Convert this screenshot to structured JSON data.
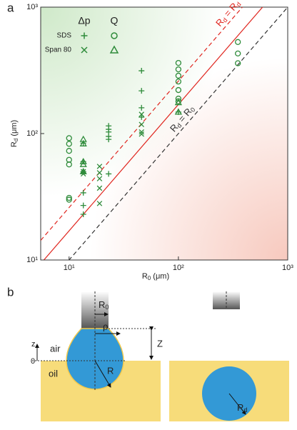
{
  "chart_data": {
    "type": "scatter",
    "panel_label": "a",
    "x_label": {
      "base": "R",
      "sub": "0",
      "unit": " (μm)"
    },
    "y_label": {
      "base": "R",
      "sub": "d",
      "unit": " (μm)"
    },
    "log_x": true,
    "log_y": true,
    "xlim": [
      5.5,
      1000
    ],
    "ylim": [
      10,
      1000
    ],
    "xticks": [
      {
        "value": 10,
        "label": "10¹"
      },
      {
        "value": 100,
        "label": "10²"
      },
      {
        "value": 1000,
        "label": "10³"
      }
    ],
    "yticks": [
      {
        "value": 10,
        "label": "10¹"
      },
      {
        "value": 100,
        "label": "10²"
      },
      {
        "value": 1000,
        "label": "10³"
      }
    ],
    "series": [
      {
        "name": "SDS",
        "method": "Δp",
        "marker": "plus",
        "color": "#2e8b3a",
        "x": [
          13.5,
          13.5,
          13.5,
          13.5,
          13.5,
          13.5,
          23,
          23,
          23,
          23,
          23,
          23,
          46,
          46,
          46,
          46,
          100
        ],
        "values": [
          84,
          60,
          50,
          34,
          27,
          23,
          115,
          108,
          103,
          95,
          90,
          48,
          314,
          218,
          160,
          135,
          148
        ]
      },
      {
        "name": "SDS",
        "method": "Q",
        "marker": "circle",
        "color": "#2e8b3a",
        "x": [
          10,
          10,
          10,
          10,
          10,
          10,
          10,
          100,
          100,
          100,
          100,
          100,
          100,
          100,
          350,
          350,
          350
        ],
        "values": [
          92,
          83,
          73,
          62,
          57,
          31,
          30,
          362,
          322,
          287,
          258,
          221,
          189,
          180,
          530,
          430,
          360
        ]
      },
      {
        "name": "Span 80",
        "method": "Δp",
        "marker": "cross",
        "color": "#2e8b3a",
        "x": [
          13.5,
          13.5,
          19,
          19,
          19,
          19,
          19,
          46,
          46,
          46,
          46
        ],
        "values": [
          50,
          48,
          55,
          49,
          44,
          37,
          28,
          142,
          118,
          103,
          99
        ]
      },
      {
        "name": "Span 80",
        "method": "Q",
        "marker": "triangle",
        "color": "#2e8b3a",
        "x": [
          13.5,
          13.5,
          13.5,
          13.5,
          13.5,
          100,
          100
        ],
        "values": [
          90,
          83,
          60,
          57,
          50,
          148,
          176
        ]
      }
    ],
    "lines": [
      {
        "factor": 1,
        "color": "#333333",
        "dash": true,
        "label": {
          "a": "R",
          "a_sub": "d",
          "eq": " = ",
          "b": "R",
          "b_sub": "0"
        }
      },
      {
        "factor": 1.7,
        "color": "#e0261f",
        "dash": false
      },
      {
        "factor": 2.6,
        "color": "#e0261f",
        "dash": true,
        "label": {
          "a": "R",
          "a_sub": "d",
          "eq": " = ",
          "b": "R",
          "b_sub": "d",
          "b_sup": "*"
        }
      }
    ]
  },
  "panel_b": {
    "panel_label": "b",
    "z": "z",
    "air": "air",
    "zero": "0",
    "oil": "oil",
    "r0": {
      "base": "R",
      "sub": "0"
    },
    "rho": "ρ",
    "Z": "Z",
    "R": "R",
    "rd": {
      "base": "R",
      "sub": "d"
    }
  }
}
